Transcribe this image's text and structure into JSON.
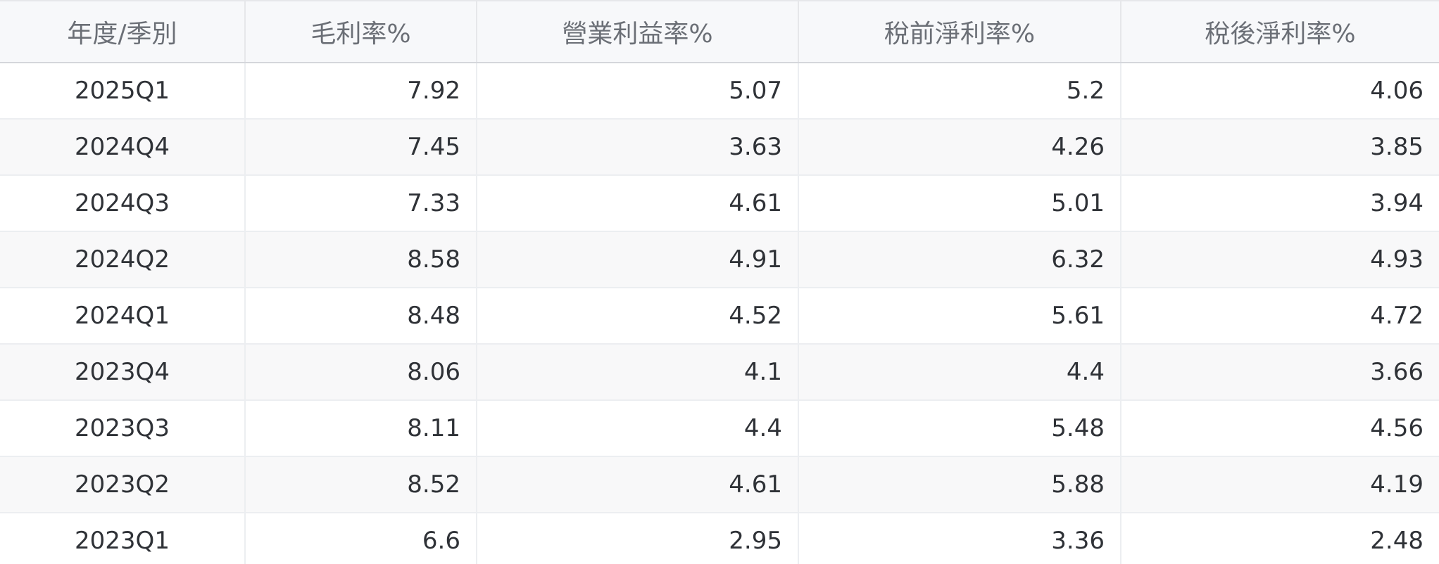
{
  "table": {
    "headers": [
      "年度/季別",
      "毛利率%",
      "營業利益率%",
      "稅前淨利率%",
      "稅後淨利率%"
    ],
    "rows": [
      [
        "2025Q1",
        "7.92",
        "5.07",
        "5.2",
        "4.06"
      ],
      [
        "2024Q4",
        "7.45",
        "3.63",
        "4.26",
        "3.85"
      ],
      [
        "2024Q3",
        "7.33",
        "4.61",
        "5.01",
        "3.94"
      ],
      [
        "2024Q2",
        "8.58",
        "4.91",
        "6.32",
        "4.93"
      ],
      [
        "2024Q1",
        "8.48",
        "4.52",
        "5.61",
        "4.72"
      ],
      [
        "2023Q4",
        "8.06",
        "4.1",
        "4.4",
        "3.66"
      ],
      [
        "2023Q3",
        "8.11",
        "4.4",
        "5.48",
        "4.56"
      ],
      [
        "2023Q2",
        "8.52",
        "4.61",
        "5.88",
        "4.19"
      ],
      [
        "2023Q1",
        "6.6",
        "2.95",
        "3.36",
        "2.48"
      ]
    ]
  },
  "colors": {
    "header_bg": "#f7f8fa",
    "header_text": "#6b6f76",
    "body_text": "#2f3237",
    "stripe_bg": "#f8f8f9",
    "border": "#eceef1"
  }
}
